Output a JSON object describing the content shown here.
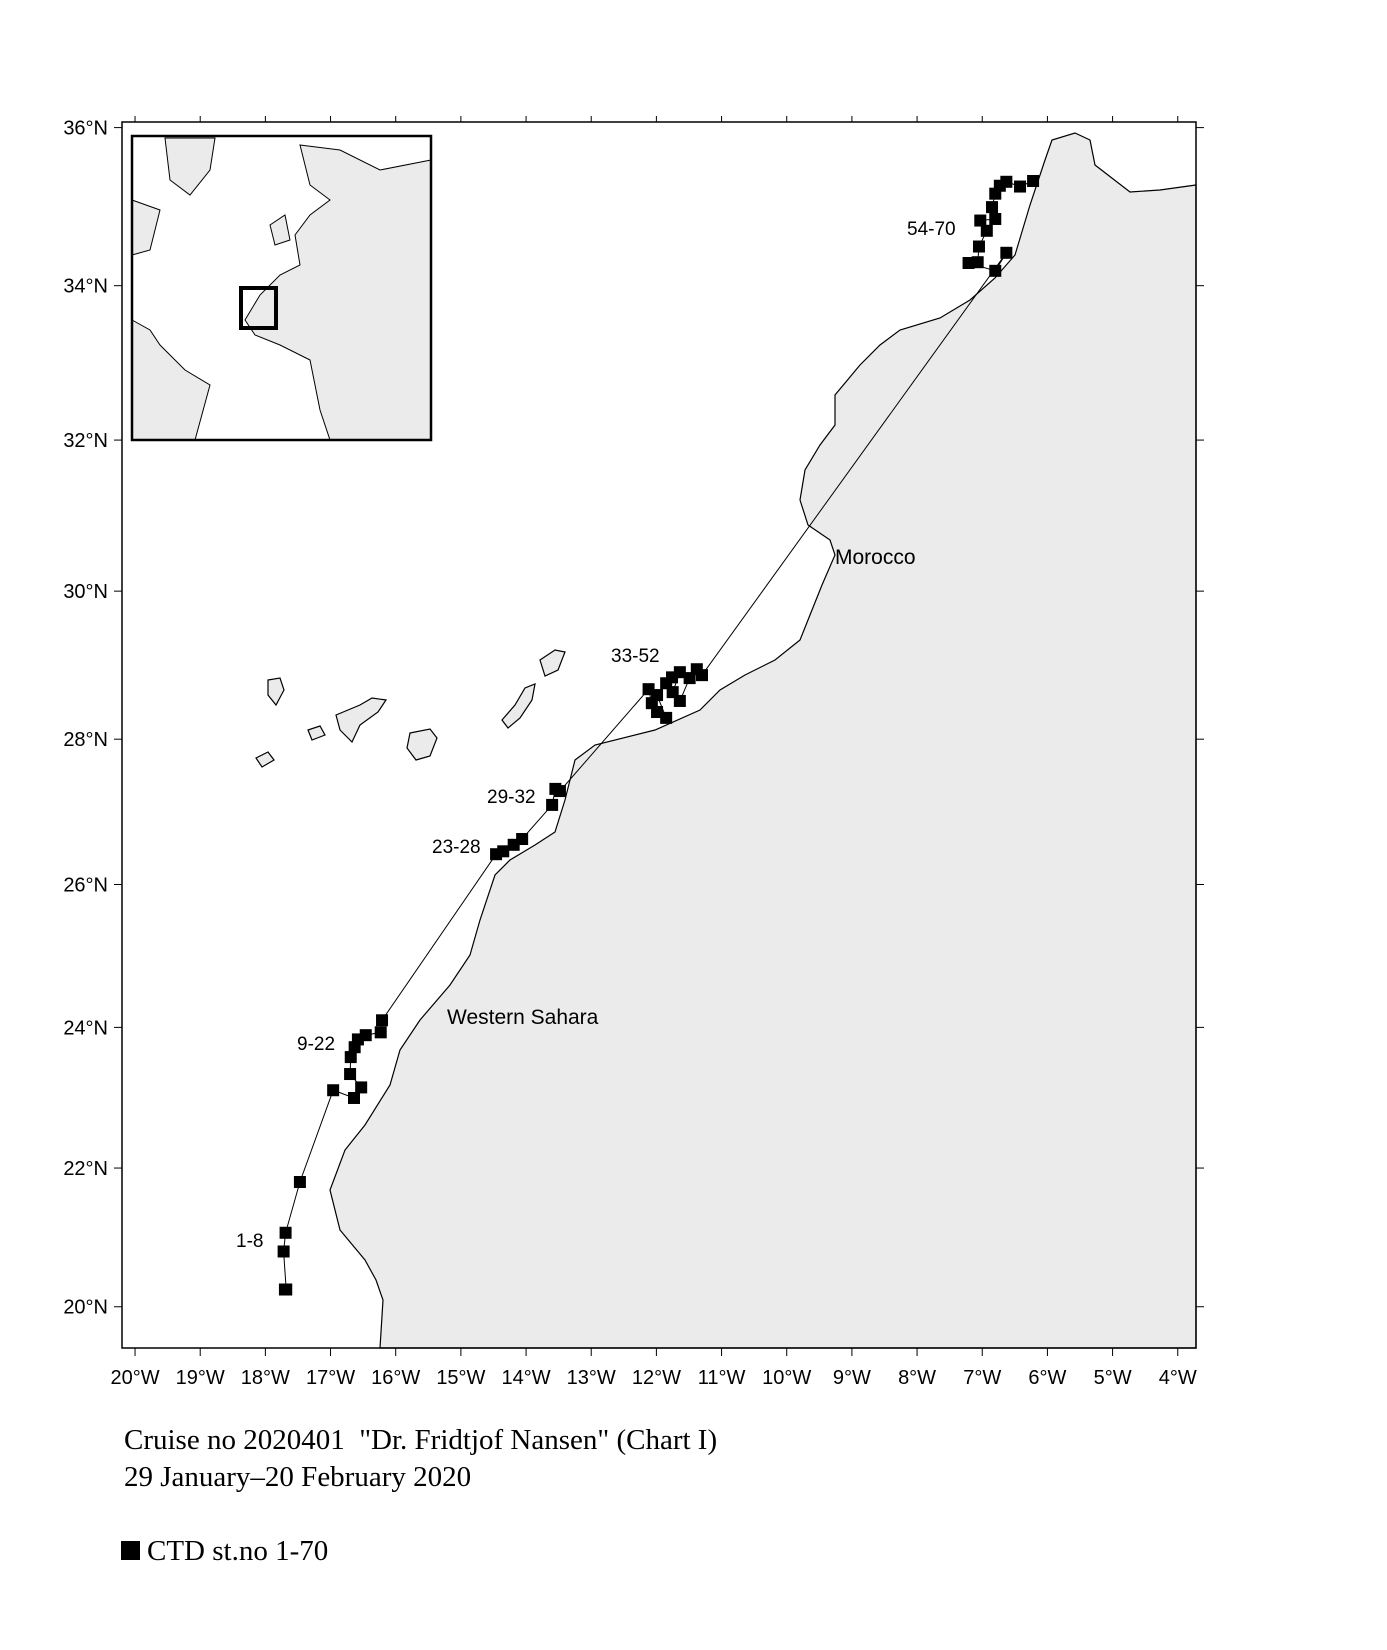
{
  "map": {
    "xlim": [
      -20.2,
      -3.72
    ],
    "ylim": [
      19.4,
      36.07
    ],
    "xticks": [
      {
        "value": -20,
        "label": "20°W"
      },
      {
        "value": -19,
        "label": "19°W"
      },
      {
        "value": -18,
        "label": "18°W"
      },
      {
        "value": -17,
        "label": "17°W"
      },
      {
        "value": -16,
        "label": "16°W"
      },
      {
        "value": -15,
        "label": "15°W"
      },
      {
        "value": -14,
        "label": "14°W"
      },
      {
        "value": -13,
        "label": "13°W"
      },
      {
        "value": -12,
        "label": "12°W"
      },
      {
        "value": -11,
        "label": "11°W"
      },
      {
        "value": -10,
        "label": "10°W"
      },
      {
        "value": -9,
        "label": "9°W"
      },
      {
        "value": -8,
        "label": "8°W"
      },
      {
        "value": -7,
        "label": "7°W"
      },
      {
        "value": -6,
        "label": "6°W"
      },
      {
        "value": -5,
        "label": "5°W"
      },
      {
        "value": -4,
        "label": "4°W"
      }
    ],
    "yticks": [
      {
        "value": 20,
        "label": "20°N"
      },
      {
        "value": 22,
        "label": "22°N"
      },
      {
        "value": 24,
        "label": "24°N"
      },
      {
        "value": 26,
        "label": "26°N"
      },
      {
        "value": 28,
        "label": "28°N"
      },
      {
        "value": 30,
        "label": "30°N"
      },
      {
        "value": 32,
        "label": "32°N"
      },
      {
        "value": 34,
        "label": "34°N"
      },
      {
        "value": 36,
        "label": "36°N"
      }
    ],
    "places": [
      "Morocco",
      "Western Sahara"
    ],
    "station_groups": [
      "1-8",
      "9-22",
      "23-28",
      "29-32",
      "33-52",
      "54-70"
    ],
    "stations": {
      "lon": [
        -17.7,
        -17.68,
        -17.72,
        -17.69,
        -17.47,
        -16.96,
        -16.64,
        -16.53,
        -16.7,
        -16.69,
        -16.63,
        -16.58,
        -16.46,
        -16.23,
        -16.21,
        -14.46,
        -14.35,
        -14.19,
        -14.06,
        -13.6,
        -13.55,
        -13.48,
        -12.12,
        -12.07,
        -11.99,
        -11.85,
        -11.99,
        -11.85,
        -11.76,
        -11.64,
        -11.75,
        -11.64,
        -11.49,
        -11.38,
        -11.3,
        -6.63,
        -6.8,
        -7.21,
        -7.07,
        -7.05,
        -6.93,
        -7.03,
        -6.8,
        -6.85,
        -6.8,
        -6.73,
        -6.63,
        -6.42,
        -6.22
      ],
      "lat": [
        20.25,
        20.25,
        20.8,
        21.07,
        21.8,
        23.11,
        23.0,
        23.15,
        23.34,
        23.58,
        23.72,
        23.83,
        23.89,
        23.93,
        24.1,
        26.42,
        26.46,
        26.55,
        26.63,
        27.1,
        27.32,
        27.29,
        28.68,
        28.49,
        28.37,
        28.29,
        28.6,
        28.76,
        28.84,
        28.91,
        28.64,
        28.52,
        28.83,
        28.95,
        28.87,
        34.42,
        34.19,
        34.29,
        34.3,
        34.5,
        34.7,
        34.83,
        34.85,
        35.0,
        35.17,
        35.27,
        35.32,
        35.26,
        35.33
      ]
    },
    "caption": [
      "Cruise no 2020401  \"Dr. Fridtjof Nansen\" (Chart I)",
      "29 January–20 February 2020"
    ],
    "legend": "CTD st.no 1-70"
  }
}
